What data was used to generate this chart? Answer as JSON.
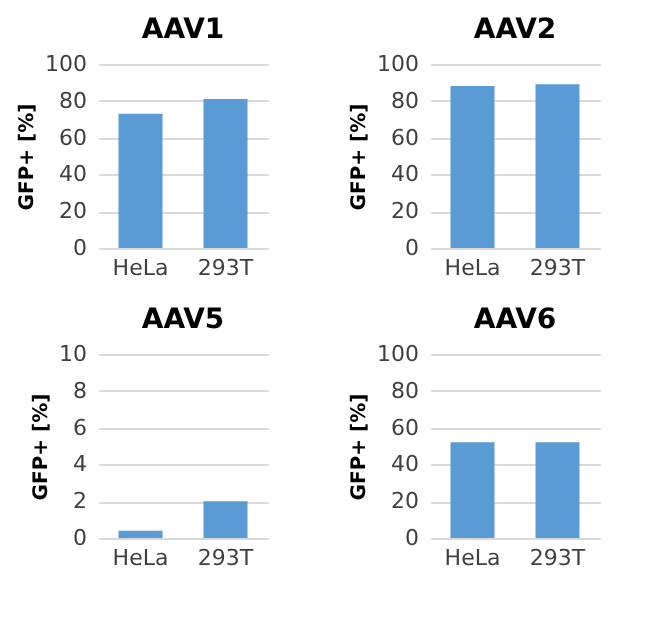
{
  "chart_data": [
    {
      "type": "bar",
      "title": "AAV1",
      "ylabel": "GFP+ [%]",
      "categories": [
        "HeLa",
        "293T"
      ],
      "values": [
        73,
        81
      ],
      "color": "#5b9bd5",
      "ylim": [
        0,
        100
      ],
      "yticks": [
        0,
        20,
        40,
        60,
        80,
        100
      ],
      "grid": "y"
    },
    {
      "type": "bar",
      "title": "AAV2",
      "ylabel": "GFP+ [%]",
      "categories": [
        "HeLa",
        "293T"
      ],
      "values": [
        88,
        89
      ],
      "color": "#5b9bd5",
      "ylim": [
        0,
        100
      ],
      "yticks": [
        0,
        20,
        40,
        60,
        80,
        100
      ],
      "grid": "y"
    },
    {
      "type": "bar",
      "title": "AAV5",
      "ylabel": "GFP+ [%]",
      "categories": [
        "HeLa",
        "293T"
      ],
      "values": [
        0.4,
        2.0
      ],
      "color": "#5b9bd5",
      "ylim": [
        0,
        10
      ],
      "yticks": [
        0,
        2,
        4,
        6,
        8,
        10
      ],
      "grid": "y"
    },
    {
      "type": "bar",
      "title": "AAV6",
      "ylabel": "GFP+ [%]",
      "categories": [
        "HeLa",
        "293T"
      ],
      "values": [
        52,
        52
      ],
      "color": "#5b9bd5",
      "ylim": [
        0,
        100
      ],
      "yticks": [
        0,
        20,
        40,
        60,
        80,
        100
      ],
      "grid": "y"
    }
  ]
}
